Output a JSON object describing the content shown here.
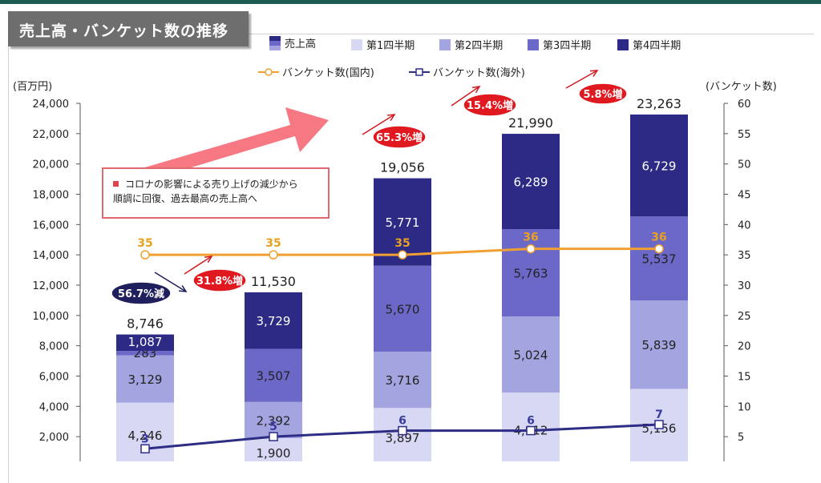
{
  "title": "売上高・バンケット数の推移",
  "legend": {
    "sales": "売上高",
    "q1": "第1四半期",
    "q2": "第2四半期",
    "q3": "第3四半期",
    "q4": "第4四半期",
    "domestic": "バンケット数(国内)",
    "overseas": "バンケット数(海外)"
  },
  "left_axis_unit": "(百万円)",
  "right_axis_unit": "(バンケット数)",
  "callout_text_line1": "コロナの影響による売り上げの減少から",
  "callout_text_line2": "順調に回復、過去最高の売上高へ",
  "colors": {
    "q1": "#d7d8f4",
    "q2": "#a4a4e0",
    "q3": "#6b68c8",
    "q4": "#2c2a84",
    "domestic": "#f0a030",
    "overseas": "#2e2d86",
    "growth_badge": "#e0181f",
    "decline_badge": "#1f1f5e"
  },
  "chart_data": {
    "type": "bar",
    "stacked": true,
    "categories": [
      "",
      "",
      "",
      "",
      ""
    ],
    "series": [
      {
        "name": "第1四半期",
        "values": [
          4246,
          1900,
          3897,
          4912,
          5156
        ]
      },
      {
        "name": "第2四半期",
        "values": [
          3129,
          2392,
          3716,
          5024,
          5839
        ]
      },
      {
        "name": "第3四半期",
        "values": [
          283,
          3507,
          5670,
          5763,
          5537
        ]
      },
      {
        "name": "第4四半期",
        "values": [
          1087,
          3729,
          5771,
          6289,
          6729
        ]
      }
    ],
    "totals": [
      8746,
      11530,
      19056,
      21990,
      23263
    ],
    "line_series": [
      {
        "name": "バンケット数(国内)",
        "axis": "right",
        "values": [
          35,
          35,
          35,
          36,
          36
        ]
      },
      {
        "name": "バンケット数(海外)",
        "axis": "right",
        "values": [
          3,
          5,
          6,
          6,
          7
        ]
      }
    ],
    "growth_labels": [
      "56.7%減",
      "31.8%増",
      "65.3%増",
      "15.4%増",
      "5.8%増"
    ],
    "y_left_ticks": [
      "2,000",
      "4,000",
      "6,000",
      "8,000",
      "10,000",
      "12,000",
      "14,000",
      "16,000",
      "18,000",
      "20,000",
      "22,000",
      "24,000"
    ],
    "y_right_ticks": [
      "5",
      "10",
      "15",
      "20",
      "25",
      "30",
      "35",
      "40",
      "45",
      "50",
      "55",
      "60"
    ],
    "ylim_left": [
      0,
      24000
    ],
    "ylim_right": [
      0,
      60
    ],
    "grid": false
  }
}
